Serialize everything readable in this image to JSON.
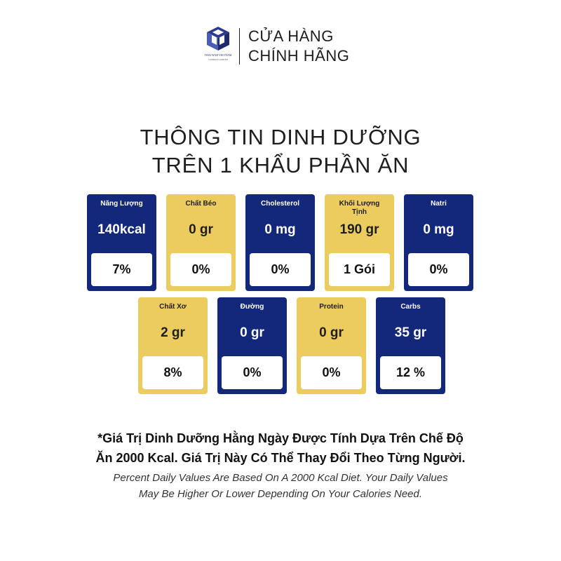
{
  "header": {
    "logo_name": "THAI WAH VIETNAM",
    "logo_sub": "COMPANY LIMITED",
    "store_line1": "CỬA HÀNG",
    "store_line2": "CHÍNH HÃNG"
  },
  "title": {
    "line1": "THÔNG TIN DINH DƯỠNG",
    "line2": "TRÊN 1 KHẨU PHẦN ĂN"
  },
  "colors": {
    "blue": "#13287a",
    "yellow": "#eccc5f"
  },
  "nutrients": [
    {
      "label": "Năng Lượng",
      "amount": "140kcal",
      "daily": "7%",
      "color": "blue"
    },
    {
      "label": "Chất Béo",
      "amount": "0 gr",
      "daily": "0%",
      "color": "yellow"
    },
    {
      "label": "Cholesterol",
      "amount": "0 mg",
      "daily": "0%",
      "color": "blue"
    },
    {
      "label": "Khối Lượng Tịnh",
      "amount": "190 gr",
      "daily": "1 Gói",
      "color": "yellow"
    },
    {
      "label": "Natri",
      "amount": "0 mg",
      "daily": "0%",
      "color": "blue"
    },
    {
      "label": "Chất Xơ",
      "amount": "2 gr",
      "daily": "8%",
      "color": "yellow"
    },
    {
      "label": "Đường",
      "amount": "0 gr",
      "daily": "0%",
      "color": "blue"
    },
    {
      "label": "Protein",
      "amount": "0 gr",
      "daily": "0%",
      "color": "yellow"
    },
    {
      "label": "Carbs",
      "amount": "35 gr",
      "daily": "12 %",
      "color": "blue"
    }
  ],
  "note": {
    "vi_line1": "*Giá Trị Dinh Dưỡng Hằng Ngày Được Tính Dựa Trên Chế Độ",
    "vi_line2": "Ăn 2000 Kcal. Giá Trị Này Có Thể Thay Đổi Theo Từng Người.",
    "en_line1": "Percent Daily Values Are Based On A 2000 Kcal Diet. Your Daily Values",
    "en_line2": "May Be Higher Or Lower Depending On Your Calories Need."
  }
}
